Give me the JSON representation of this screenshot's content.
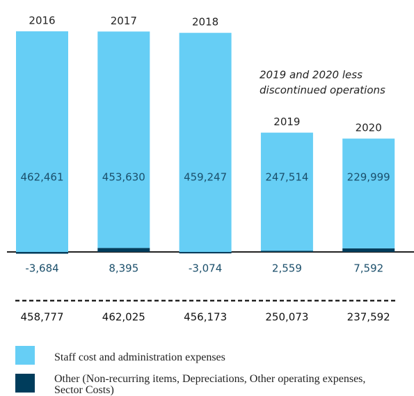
{
  "chart_data": {
    "type": "stacked-bar",
    "categories": [
      "2016",
      "2017",
      "2018",
      "2019",
      "2020"
    ],
    "annotation": [
      "2019 and 2020 less",
      "discontinued operations"
    ],
    "series": [
      {
        "name": "Staff cost and administration expenses",
        "color": "#66cef5",
        "values": [
          462461,
          453630,
          459247,
          247514,
          229999
        ],
        "value_labels": [
          "462,461",
          "453,630",
          "459,247",
          "247,514",
          "229,999"
        ]
      },
      {
        "name": "Other (Non-recurring items, Depreciations, Other operating expenses, Sector Costs)",
        "color": "#003d5c",
        "values": [
          -3684,
          8395,
          -3074,
          2559,
          7592
        ],
        "value_labels": [
          "-3,684",
          "8,395",
          "-3,074",
          "2,559",
          "7,592"
        ]
      }
    ],
    "totals": {
      "values": [
        458777,
        462025,
        456173,
        250073,
        237592
      ],
      "value_labels": [
        "458,777",
        "462,025",
        "456,173",
        "250,073",
        "237,592"
      ]
    }
  }
}
